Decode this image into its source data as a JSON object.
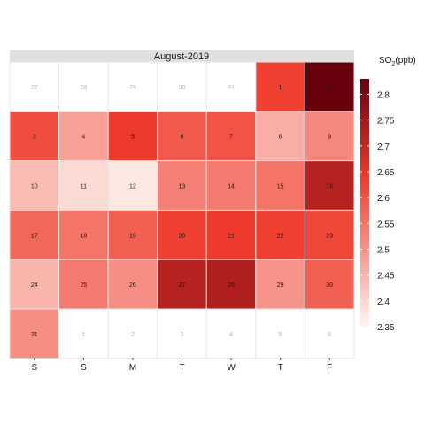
{
  "chart_data": {
    "type": "heatmap",
    "title": "August-2019",
    "columns": [
      "S",
      "S",
      "M",
      "T",
      "W",
      "T",
      "F"
    ],
    "legend": {
      "title_main": "SO",
      "title_sub": "2",
      "title_unit": "(ppb)",
      "ticks": [
        2.35,
        2.4,
        2.45,
        2.5,
        2.55,
        2.6,
        2.65,
        2.7,
        2.75,
        2.8
      ],
      "tick_labels": [
        "2.35",
        "2.4",
        "2.45",
        "2.5",
        "2.55",
        "2.6",
        "2.65",
        "2.7",
        "2.75",
        "2.8"
      ],
      "range": [
        2.35,
        2.83
      ]
    },
    "color_scale": {
      "low": "#fff5f0",
      "mid": "#ef3b2c",
      "high": "#67000d"
    },
    "weeks": [
      [
        {
          "label": "27",
          "value": null
        },
        {
          "label": "28",
          "value": null
        },
        {
          "label": "29",
          "value": null
        },
        {
          "label": "30",
          "value": null
        },
        {
          "label": "31",
          "value": null
        },
        {
          "label": "1",
          "value": 2.63
        },
        {
          "label": "2",
          "value": 2.83
        }
      ],
      [
        {
          "label": "3",
          "value": 2.61
        },
        {
          "label": "4",
          "value": 2.48
        },
        {
          "label": "5",
          "value": 2.64
        },
        {
          "label": "6",
          "value": 2.59
        },
        {
          "label": "7",
          "value": 2.6
        },
        {
          "label": "8",
          "value": 2.46
        },
        {
          "label": "9",
          "value": 2.52
        }
      ],
      [
        {
          "label": "10",
          "value": 2.44
        },
        {
          "label": "11",
          "value": 2.39
        },
        {
          "label": "12",
          "value": 2.37
        },
        {
          "label": "13",
          "value": 2.53
        },
        {
          "label": "14",
          "value": 2.54
        },
        {
          "label": "15",
          "value": 2.55
        },
        {
          "label": "16",
          "value": 2.72
        }
      ],
      [
        {
          "label": "17",
          "value": 2.57
        },
        {
          "label": "18",
          "value": 2.55
        },
        {
          "label": "19",
          "value": 2.58
        },
        {
          "label": "20",
          "value": 2.63
        },
        {
          "label": "21",
          "value": 2.64
        },
        {
          "label": "22",
          "value": 2.63
        },
        {
          "label": "23",
          "value": 2.62
        }
      ],
      [
        {
          "label": "24",
          "value": 2.45
        },
        {
          "label": "25",
          "value": 2.54
        },
        {
          "label": "26",
          "value": 2.51
        },
        {
          "label": "27",
          "value": 2.72
        },
        {
          "label": "28",
          "value": 2.73
        },
        {
          "label": "29",
          "value": 2.5
        },
        {
          "label": "30",
          "value": 2.58
        }
      ],
      [
        {
          "label": "31",
          "value": 2.51
        },
        {
          "label": "1",
          "value": null
        },
        {
          "label": "2",
          "value": null
        },
        {
          "label": "3",
          "value": null
        },
        {
          "label": "4",
          "value": null
        },
        {
          "label": "5",
          "value": null
        },
        {
          "label": "6",
          "value": null
        }
      ]
    ]
  }
}
